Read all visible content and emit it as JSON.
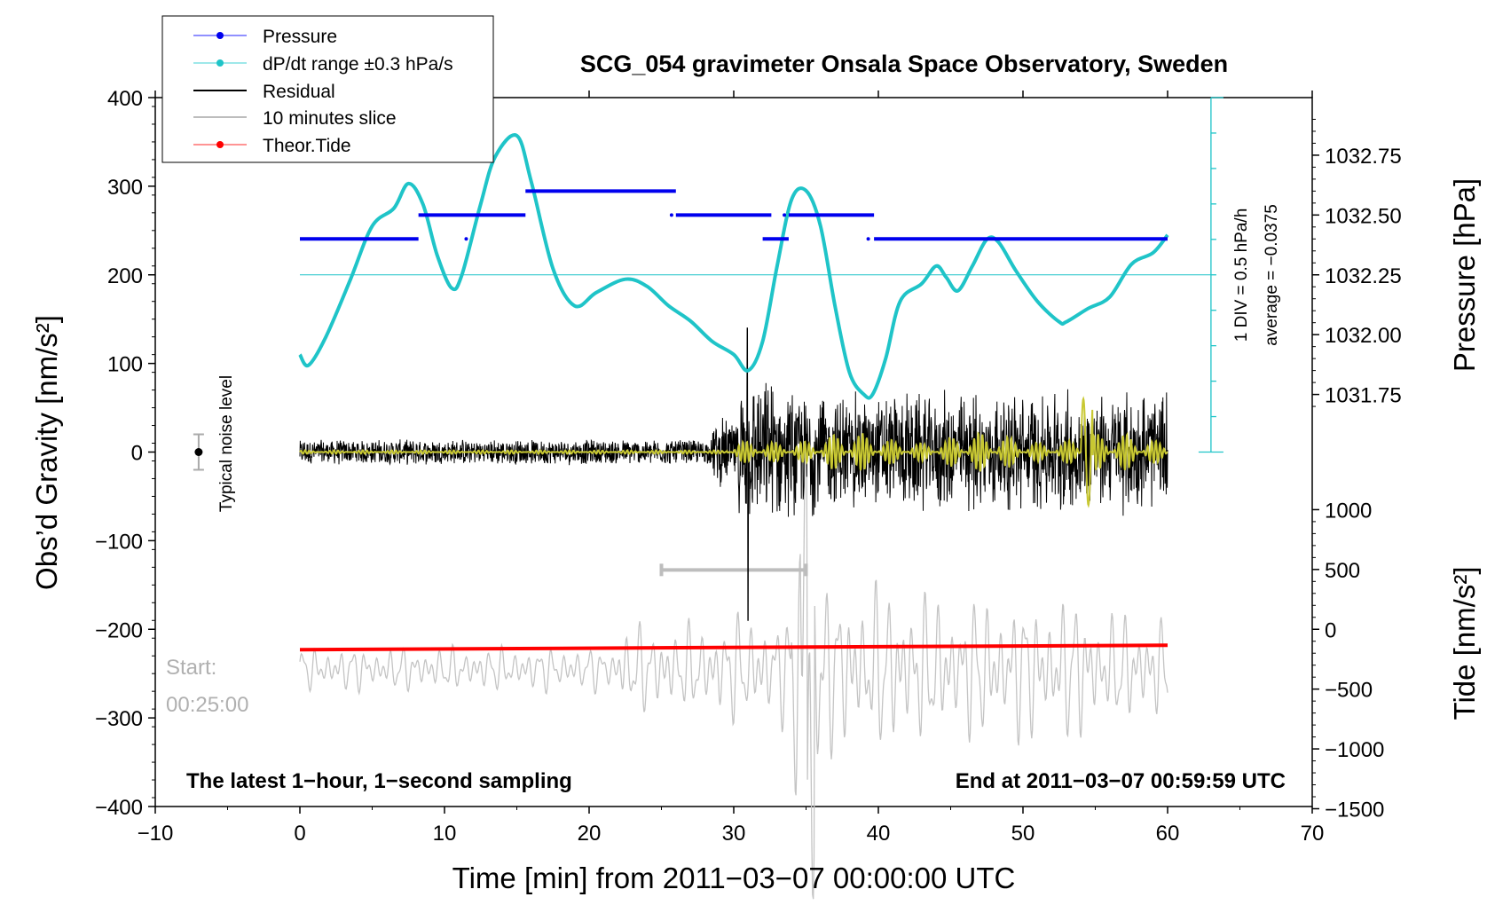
{
  "chart_data": {
    "type": "line",
    "title": "SCG_054 gravimeter Onsala Space Observatory, Sweden",
    "xlabel": "Time [min] from 2011−03−07 00:00:00 UTC",
    "ylabel_left": "Obs’d Gravity [nm/s²]",
    "ylabel_right_top": "Pressure [hPa]",
    "ylabel_right_bottom": "Tide [nm/s²]",
    "xlim": [
      -10,
      70
    ],
    "ylim": [
      -400,
      400
    ],
    "x_ticks": [
      "−10",
      "0",
      "10",
      "20",
      "30",
      "40",
      "50",
      "60",
      "70"
    ],
    "y_ticks_left": [
      "400",
      "300",
      "200",
      "100",
      "0",
      "−100",
      "−200",
      "−300",
      "−400"
    ],
    "pressure_axis": {
      "ticks": [
        "1032.75",
        "1032.50",
        "1032.25",
        "1032.00",
        "1031.75"
      ],
      "values": [
        1032.75,
        1032.5,
        1032.25,
        1032.0,
        1031.75
      ]
    },
    "tide_axis": {
      "ticks": [
        "1000",
        "500",
        "0",
        "−500",
        "−1000",
        "−1500"
      ],
      "values": [
        1000,
        500,
        0,
        -500,
        -1000,
        -1500
      ]
    },
    "legend": [
      "Pressure",
      "dP/dt range ±0.3 hPa/s",
      "Residual",
      "10 minutes slice",
      "Theor.Tide"
    ],
    "series": [
      {
        "name": "Pressure",
        "color": "#0000ee",
        "unit": "hPa",
        "segments": [
          {
            "x": [
              0,
              8.2
            ],
            "y": 1032.4
          },
          {
            "x": [
              8.2,
              15.6
            ],
            "y": 1032.5
          },
          {
            "x": [
              15.6,
              26.0
            ],
            "y": 1032.6
          },
          {
            "x": [
              26.0,
              32.6
            ],
            "y": 1032.5
          },
          {
            "x": [
              32.0,
              33.8
            ],
            "y": 1032.4
          },
          {
            "x": [
              33.8,
              39.7
            ],
            "y": 1032.5
          },
          {
            "x": [
              39.7,
              60.0
            ],
            "y": 1032.4
          }
        ]
      },
      {
        "name": "dP/dt range ±0.3 hPa/s",
        "color": "#1fc4c8",
        "x": [
          0,
          0.6,
          1.8,
          3.5,
          5,
          6.5,
          7.5,
          8.5,
          9.5,
          10.5,
          11.2,
          12.5,
          13.5,
          15,
          16,
          17.5,
          19,
          20.5,
          22.5,
          24,
          25.5,
          27,
          28.5,
          30,
          31,
          32,
          33,
          34,
          35,
          36,
          37,
          38,
          39,
          39.6,
          40.5,
          41.5,
          43,
          44,
          44.7,
          45.5,
          46.5,
          47.5,
          48.3,
          49.5,
          51,
          52.5,
          53,
          54.5,
          56,
          57.5,
          59,
          60
        ],
        "y": [
          110,
          98,
          130,
          195,
          255,
          275,
          303,
          280,
          222,
          185,
          200,
          280,
          333,
          357,
          305,
          207,
          165,
          180,
          195,
          187,
          165,
          148,
          125,
          110,
          92,
          125,
          210,
          285,
          295,
          255,
          165,
          90,
          65,
          65,
          105,
          170,
          190,
          210,
          197,
          182,
          210,
          240,
          237,
          205,
          170,
          147,
          147,
          162,
          175,
          212,
          225,
          245
        ]
      },
      {
        "name": "Residual",
        "color": "#000000",
        "description": "1-second residual, amplitude ~±10 before 29 min, up to +100/−190 after"
      },
      {
        "name": "10 minutes slice",
        "color": "#c0c0c0",
        "x_range": [
          25,
          35
        ]
      },
      {
        "name": "Theor.Tide",
        "color": "#ff0000",
        "y_start": -223,
        "y_end": -218,
        "x": [
          0,
          60
        ]
      }
    ],
    "dpdt_reference": {
      "y": 200,
      "color": "#1fc4c8"
    },
    "noise_bar": {
      "x": -7,
      "y": 0,
      "err": 20,
      "label": "Typical noise level"
    },
    "scale_bar_labels": [
      "1 DIV = 0.5 hPa/h",
      "average = −0.0375"
    ],
    "start_label": [
      "Start:",
      "00:25:00"
    ],
    "bottom_left_label": "The latest 1−hour, 1−second sampling",
    "bottom_right_label": "End at 2011−03−07 00:59:59 UTC"
  }
}
